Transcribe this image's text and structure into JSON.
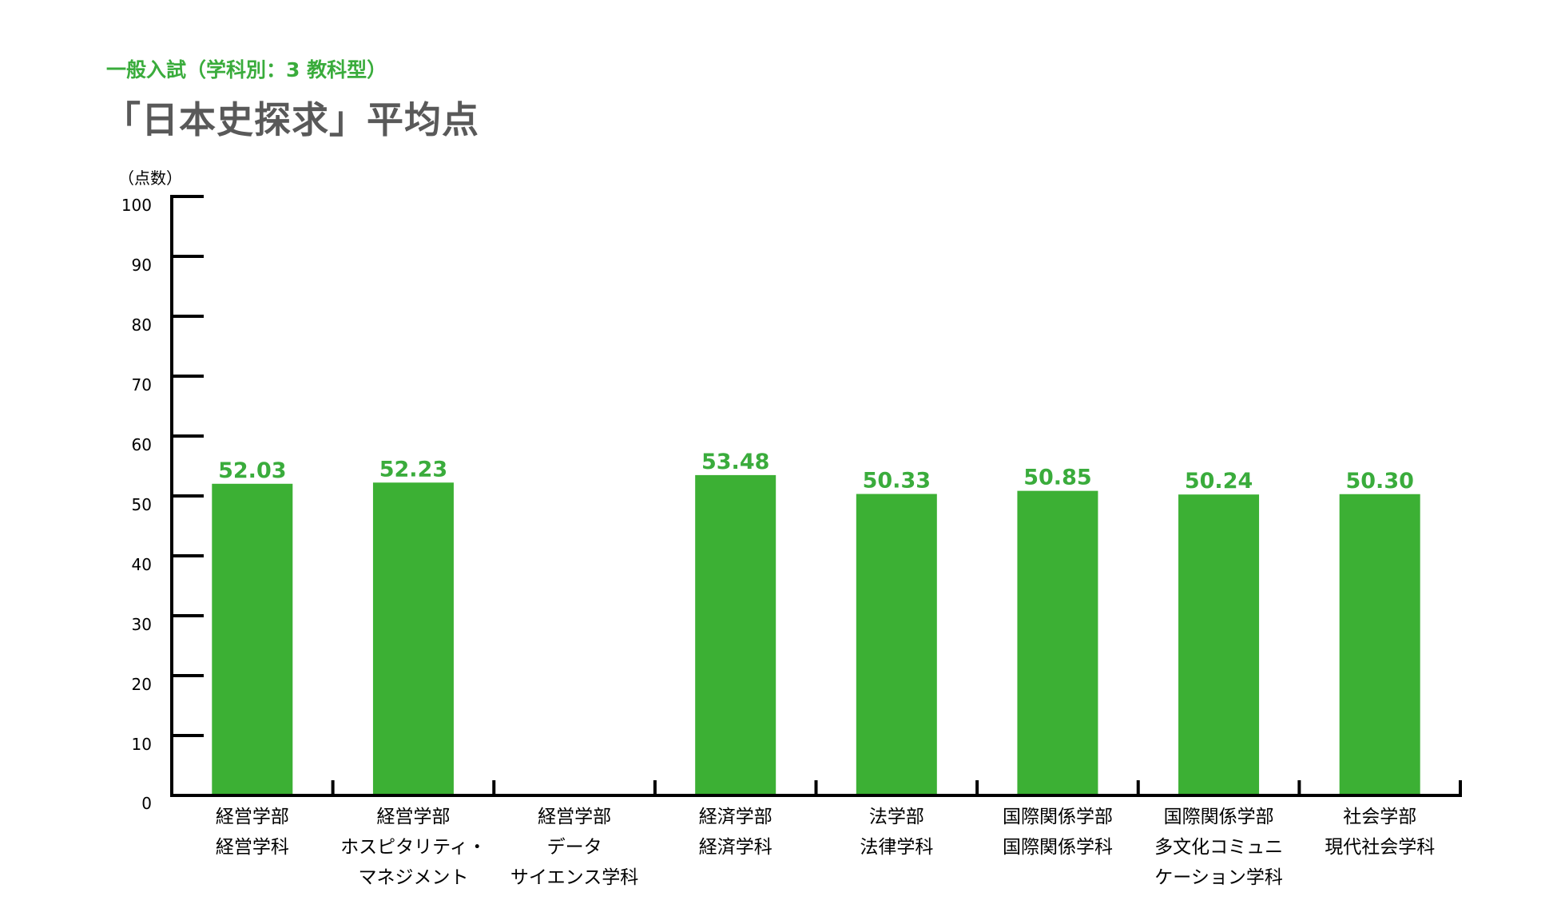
{
  "header": {
    "subtitle": "一般入試（学科別：3 教科型）",
    "title": "「日本史探求」平均点"
  },
  "colors": {
    "bar": "#3cb034",
    "label": "#3aac3c",
    "axis": "#000000",
    "title": "#595959"
  },
  "chart_data": {
    "type": "bar",
    "title": "「日本史探求」平均点",
    "ylabel": "（点数）",
    "ylim": [
      0,
      100
    ],
    "yticks": [
      "0",
      "10",
      "20",
      "30",
      "40",
      "50",
      "60",
      "70",
      "80",
      "90",
      "100"
    ],
    "grid": false,
    "categories": [
      [
        "経営学部",
        "経営学科"
      ],
      [
        "経営学部",
        "ホスピタリティ・",
        "マネジメント"
      ],
      [
        "経営学部",
        "データ",
        "サイエンス学科"
      ],
      [
        "経済学部",
        "経済学科"
      ],
      [
        "法学部",
        "法律学科"
      ],
      [
        "国際関係学部",
        "国際関係学科"
      ],
      [
        "国際関係学部",
        "多文化コミュニ",
        "ケーション学科"
      ],
      [
        "社会学部",
        "現代社会学科"
      ]
    ],
    "values": [
      52.03,
      52.23,
      null,
      53.48,
      50.33,
      50.85,
      50.24,
      50.3
    ],
    "value_labels": [
      "52.03",
      "52.23",
      "",
      "53.48",
      "50.33",
      "50.85",
      "50.24",
      "50.30"
    ]
  }
}
